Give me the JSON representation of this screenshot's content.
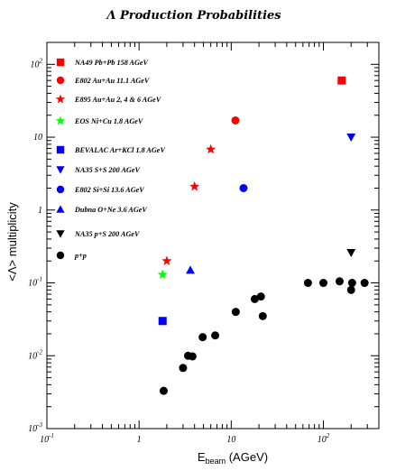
{
  "chart_data": {
    "type": "scatter",
    "title": "Λ Production Probabilities",
    "xlabel": {
      "main": "E",
      "sub": "beam",
      "rest": " (AGeV)"
    },
    "ylabel": "<Λ> multiplicity",
    "x_scale": "log",
    "y_scale": "log",
    "xlim": [
      0.1,
      400
    ],
    "ylim": [
      0.001,
      200
    ],
    "x_ticks": [
      {
        "value": 0.1,
        "base": "10",
        "exp": "-1"
      },
      {
        "value": 1,
        "base": "1",
        "exp": ""
      },
      {
        "value": 10,
        "base": "10",
        "exp": ""
      },
      {
        "value": 100,
        "base": "10",
        "exp": "2"
      }
    ],
    "y_ticks": [
      {
        "value": 0.001,
        "base": "10",
        "exp": "-3"
      },
      {
        "value": 0.01,
        "base": "10",
        "exp": "-2"
      },
      {
        "value": 0.1,
        "base": "10",
        "exp": "-1"
      },
      {
        "value": 1,
        "base": "1",
        "exp": ""
      },
      {
        "value": 10,
        "base": "10",
        "exp": ""
      },
      {
        "value": 100,
        "base": "10",
        "exp": "2"
      }
    ],
    "legend_position": "left",
    "series": [
      {
        "name": "NA49 Pb+Pb 158 AGeV",
        "marker": "square",
        "color": "#ff0000",
        "points": [
          [
            158,
            60
          ]
        ]
      },
      {
        "name": "E802 Au+Au 11.1 AGeV",
        "marker": "circle",
        "color": "#ff0000",
        "points": [
          [
            11.1,
            17
          ]
        ]
      },
      {
        "name": "E895 Au+Au 2, 4 & 6 AGeV",
        "marker": "star",
        "color": "#ff0000",
        "points": [
          [
            2,
            0.2
          ],
          [
            4,
            2.1
          ],
          [
            6,
            6.8
          ]
        ]
      },
      {
        "name": "EOS Ni+Cu 1.8 AGeV",
        "marker": "star",
        "color": "#00ff00",
        "points": [
          [
            1.8,
            0.13
          ]
        ]
      },
      {
        "name": "BEVALAC Ar+KCl 1.8 AGeV",
        "marker": "square",
        "color": "#0000ff",
        "points": [
          [
            1.8,
            0.03
          ]
        ]
      },
      {
        "name": "NA35 S+S 200 AGeV",
        "marker": "triangle-down",
        "color": "#0000ff",
        "points": [
          [
            200,
            10
          ]
        ]
      },
      {
        "name": "E802 Si+Si 13.6 AGeV",
        "marker": "circle",
        "color": "#0000ff",
        "points": [
          [
            13.6,
            2
          ]
        ]
      },
      {
        "name": "Dubna O+Ne 3.6 AGeV",
        "marker": "triangle-up",
        "color": "#0000ff",
        "points": [
          [
            3.6,
            0.15
          ]
        ]
      },
      {
        "name": "NA35 p+S 200 AGeV",
        "marker": "triangle-down",
        "color": "#000000",
        "points": [
          [
            200,
            0.26
          ]
        ]
      },
      {
        "name": "p+p",
        "marker": "circle",
        "color": "#000000",
        "points": [
          [
            1.85,
            0.0033
          ],
          [
            3.0,
            0.0068
          ],
          [
            3.4,
            0.01
          ],
          [
            3.8,
            0.0098
          ],
          [
            4.9,
            0.018
          ],
          [
            6.7,
            0.019
          ],
          [
            11.2,
            0.04
          ],
          [
            18,
            0.06
          ],
          [
            21,
            0.065
          ],
          [
            22,
            0.035
          ],
          [
            68,
            0.1
          ],
          [
            100,
            0.1
          ],
          [
            150,
            0.105
          ],
          [
            200,
            0.08
          ],
          [
            205,
            0.1
          ],
          [
            280,
            0.1
          ]
        ]
      }
    ]
  }
}
